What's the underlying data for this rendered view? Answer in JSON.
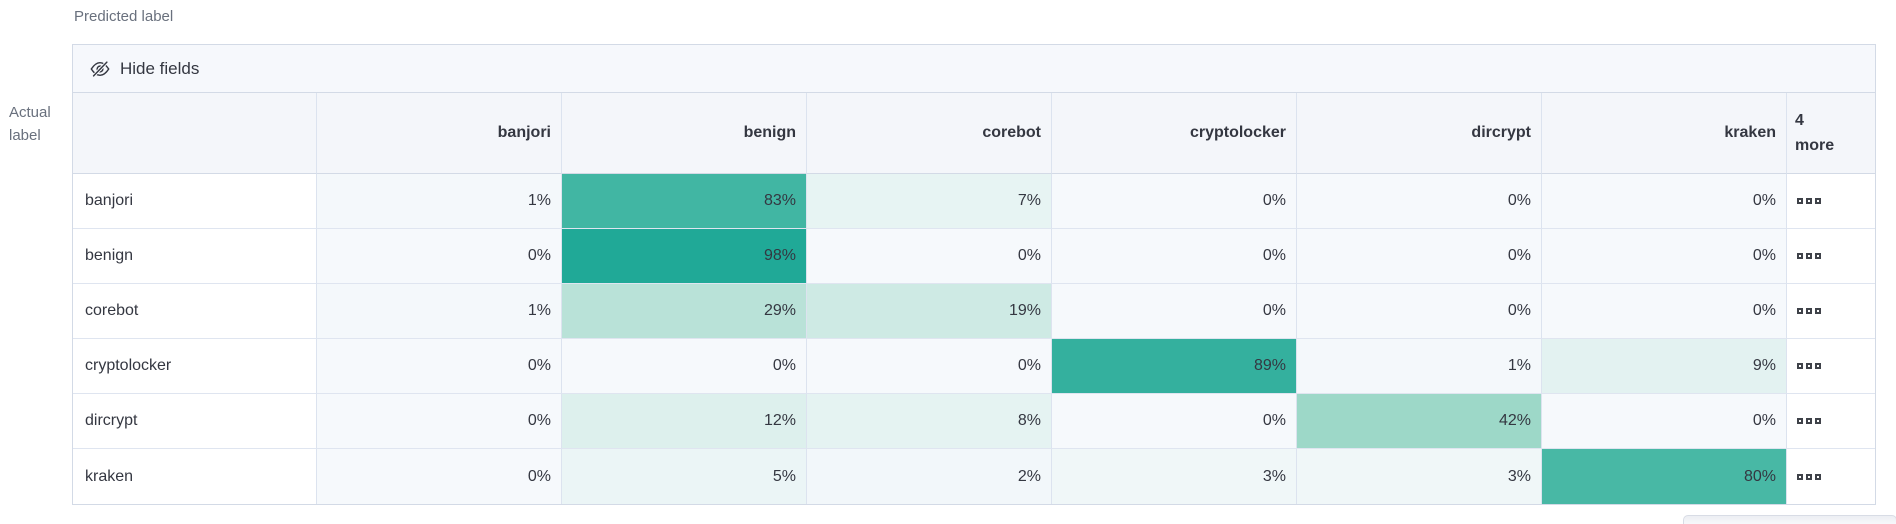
{
  "toolbar": {
    "hide_fields_label": "Hide fields",
    "icon": "eye-closed-icon"
  },
  "chart_data": {
    "type": "heatmap",
    "axis": {
      "x_label": "Predicted label",
      "y_label": "Actual label"
    },
    "columns": [
      "banjori",
      "benign",
      "corebot",
      "cryptolocker",
      "dircrypt",
      "kraken"
    ],
    "more_column": {
      "count": "4",
      "label": "more",
      "cell_icon": "boxes-horizontal-icon"
    },
    "rows": [
      "banjori",
      "benign",
      "corebot",
      "cryptolocker",
      "dircrypt",
      "kraken"
    ],
    "unit": "%",
    "values": [
      [
        1,
        83,
        7,
        0,
        0,
        0
      ],
      [
        0,
        98,
        0,
        0,
        0,
        0
      ],
      [
        1,
        29,
        19,
        0,
        0,
        0
      ],
      [
        0,
        0,
        0,
        89,
        1,
        9
      ],
      [
        0,
        12,
        8,
        0,
        42,
        0
      ],
      [
        0,
        5,
        2,
        3,
        3,
        80
      ]
    ],
    "heat_stops": [
      "#F6F9FC",
      "#8CD2BE",
      "#1BA795"
    ],
    "legend": "off",
    "grid": "on"
  }
}
